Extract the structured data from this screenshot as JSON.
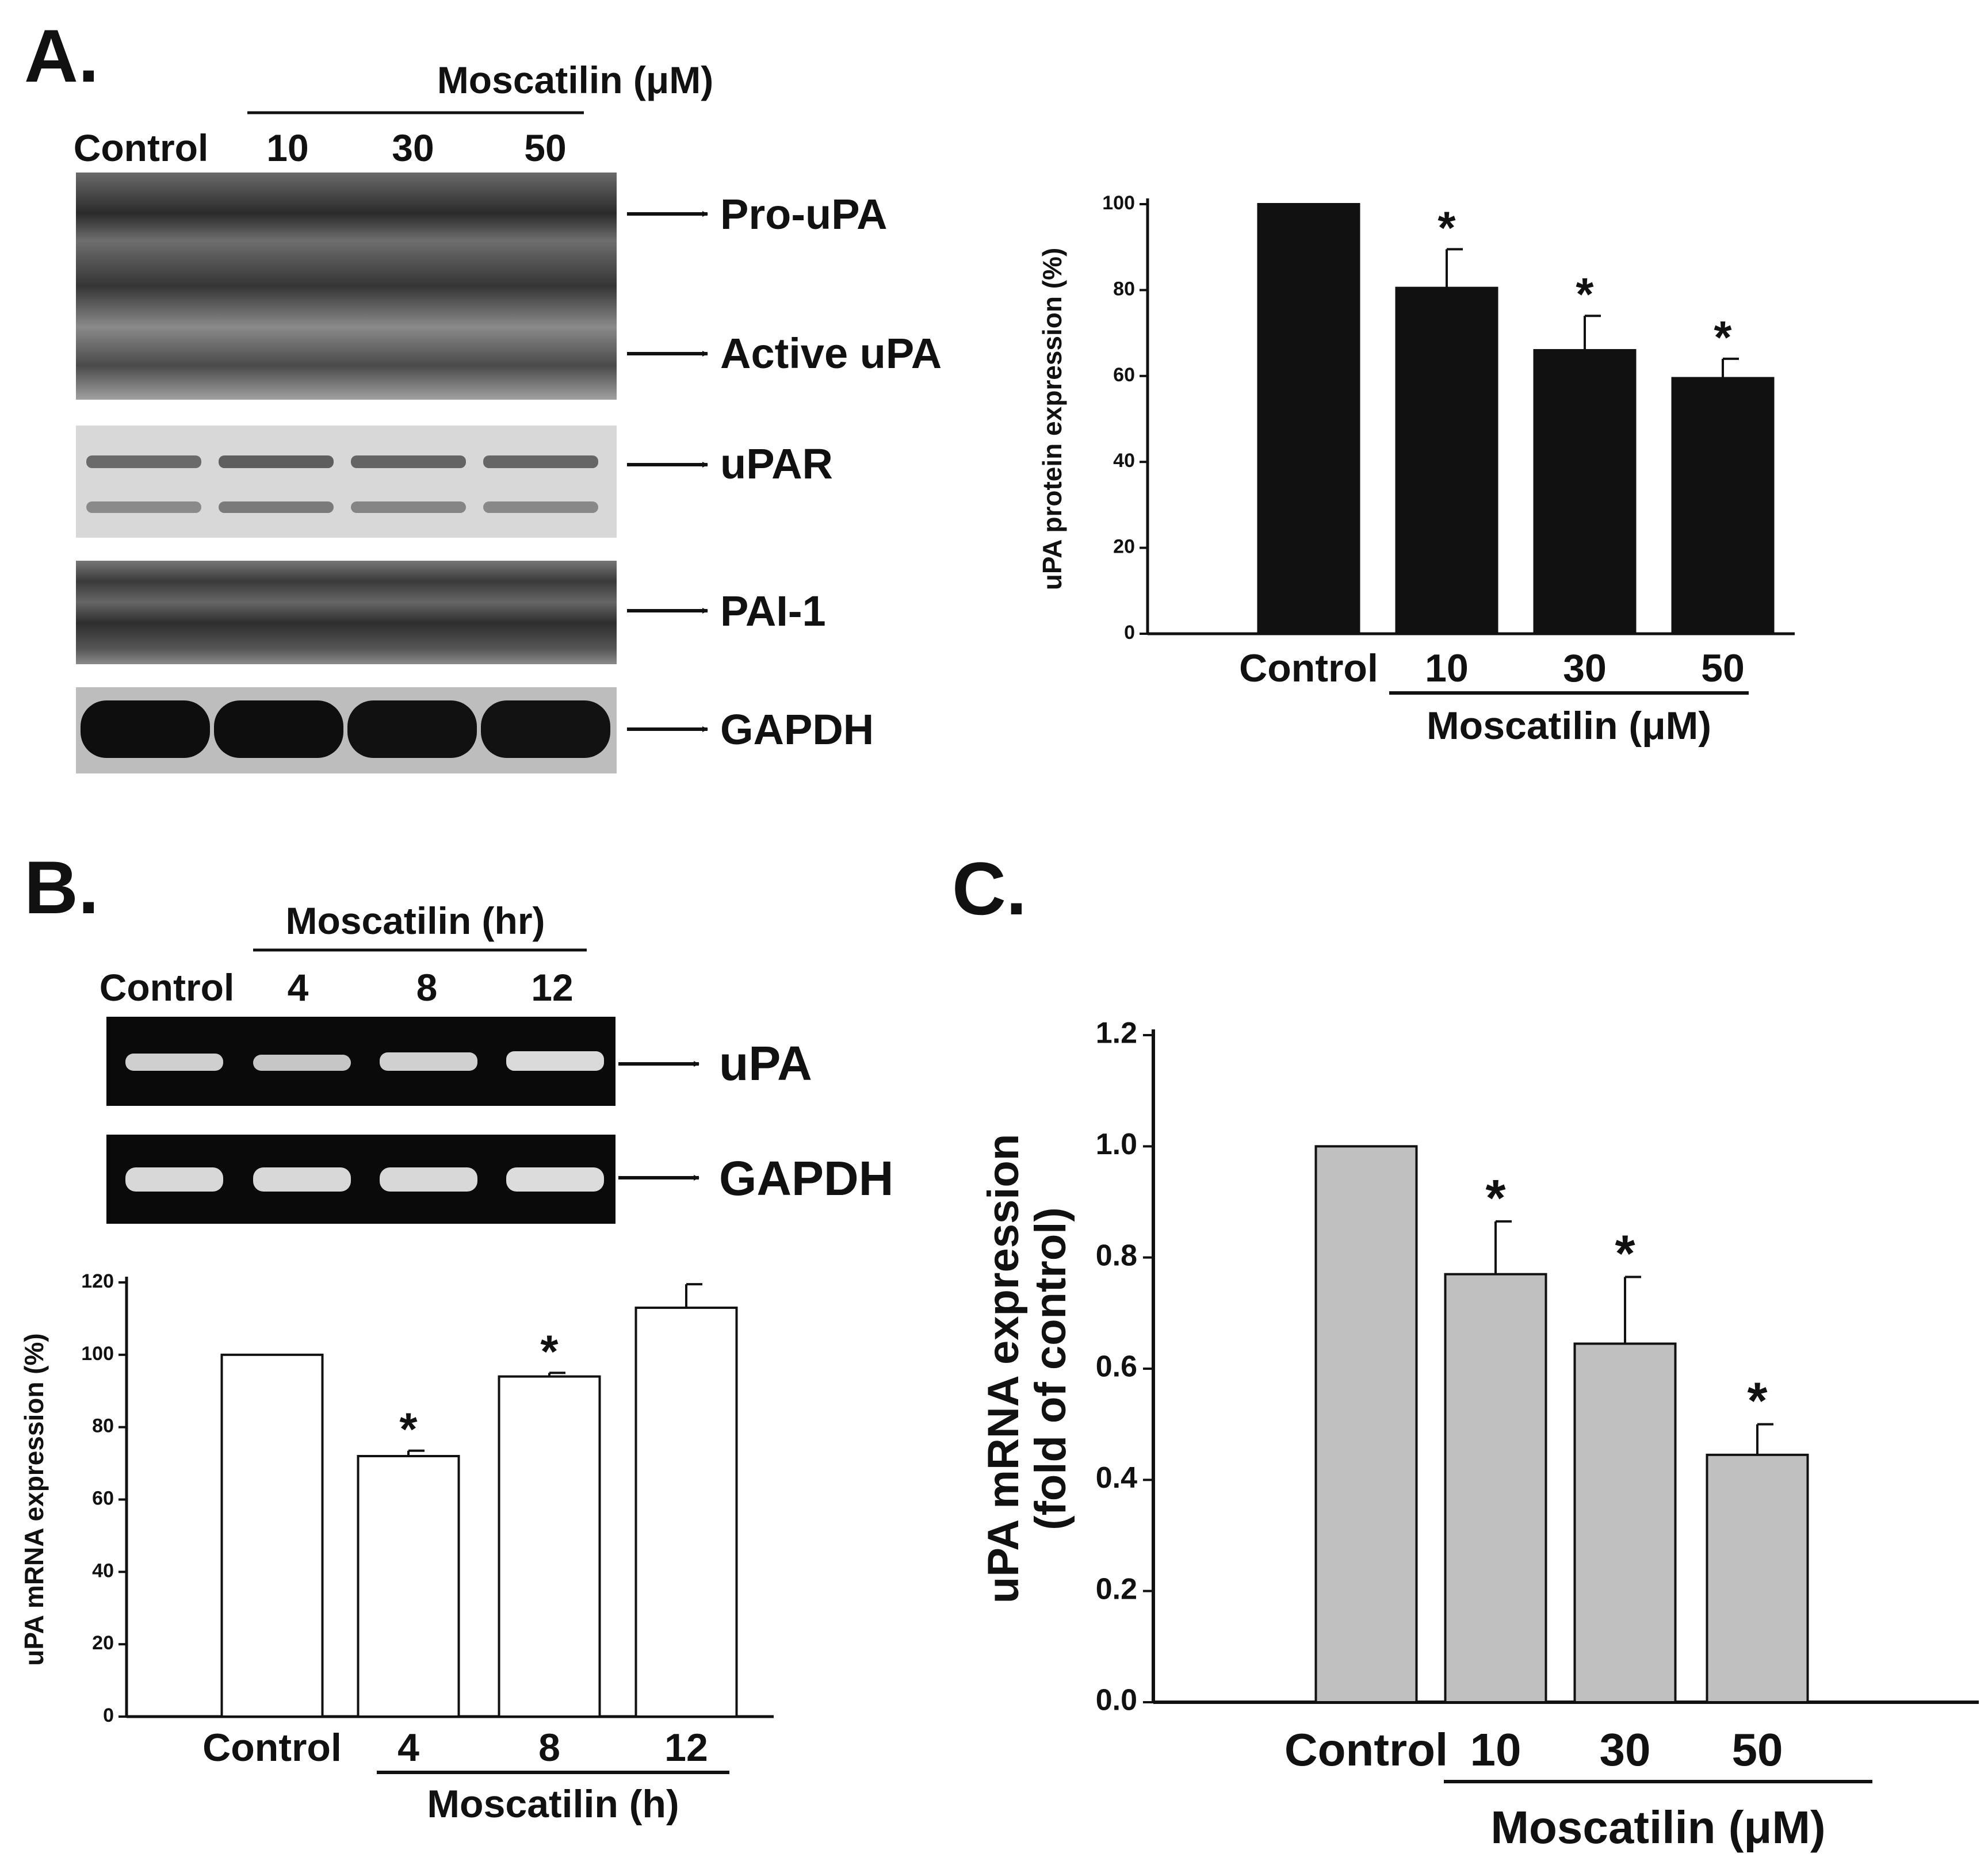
{
  "panels": {
    "a": {
      "letter": "A.",
      "blot": {
        "group_header": "Moscatilin (μM)",
        "lanes": [
          "Control",
          "10",
          "30",
          "50"
        ],
        "bands": [
          "Pro-uPA",
          "Active uPA",
          "uPAR",
          "PAI-1",
          "GAPDH"
        ]
      }
    },
    "b": {
      "letter": "B.",
      "blot": {
        "group_header": "Moscatilin (hr)",
        "lanes": [
          "Control",
          "4",
          "8",
          "12"
        ],
        "bands": [
          "uPA",
          "GAPDH"
        ]
      }
    },
    "c": {
      "letter": "C."
    }
  },
  "chart_data": [
    {
      "id": "A-bar",
      "type": "bar",
      "categories": [
        "Control",
        "10",
        "30",
        "50"
      ],
      "values": [
        100,
        80.5,
        66,
        59.5
      ],
      "errors": [
        0,
        9,
        8,
        4.5
      ],
      "significant": [
        false,
        true,
        true,
        true
      ],
      "significance_mark": "*",
      "ylabel": "uPA protein expression (%)",
      "ylim": [
        0,
        100
      ],
      "yticks": [
        0,
        20,
        40,
        60,
        80,
        100
      ],
      "ytick_labels": [
        "0",
        "20",
        "40",
        "60",
        "80",
        "100"
      ],
      "group_label": "Moscatilin (μM)",
      "bar_color": "#111111"
    },
    {
      "id": "B-bar",
      "type": "bar",
      "categories": [
        "Control",
        "4",
        "8",
        "12"
      ],
      "values": [
        100,
        72,
        94,
        113
      ],
      "errors": [
        0,
        1.5,
        1,
        6.5
      ],
      "significant": [
        false,
        true,
        true,
        false
      ],
      "significance_mark": "*",
      "ylabel": "uPA mRNA expression (%)",
      "ylim": [
        0,
        120
      ],
      "yticks": [
        0,
        20,
        40,
        60,
        80,
        100,
        120
      ],
      "ytick_labels": [
        "0",
        "20",
        "40",
        "60",
        "80",
        "100",
        "120"
      ],
      "group_label": "Moscatilin  (h)",
      "bar_color": "#ffffff"
    },
    {
      "id": "C-bar",
      "type": "bar",
      "categories": [
        "Control",
        "10",
        "30",
        "50"
      ],
      "values": [
        1.0,
        0.77,
        0.645,
        0.445
      ],
      "errors": [
        0,
        0.095,
        0.12,
        0.055
      ],
      "significant": [
        false,
        true,
        true,
        true
      ],
      "significance_mark": "*",
      "ylabel": "uPA mRNA expression",
      "ylabel2": "(fold of control)",
      "ylim": [
        0,
        1.2
      ],
      "yticks": [
        0,
        0.2,
        0.4,
        0.6,
        0.8,
        1.0,
        1.2
      ],
      "ytick_labels": [
        "0.0",
        "0.2",
        "0.4",
        "0.6",
        "0.8",
        "1.0",
        "1.2"
      ],
      "group_label": "Moscatilin (μM)",
      "bar_color": "#c0c0c0"
    }
  ]
}
